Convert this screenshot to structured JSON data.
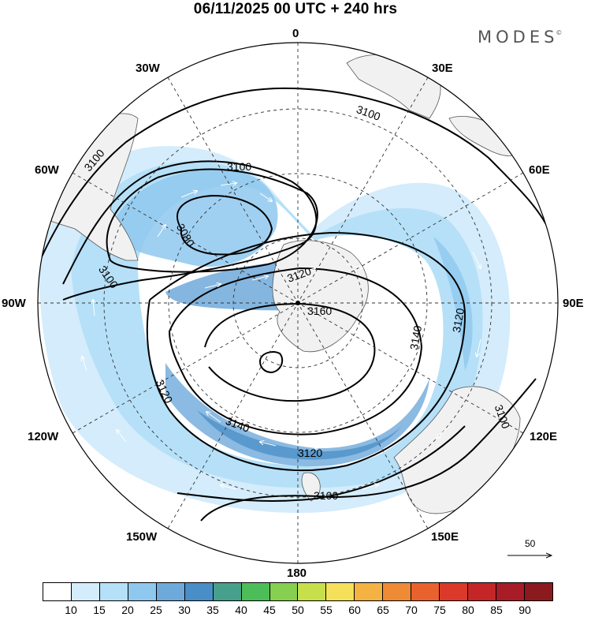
{
  "title": "06/11/2025  00 UTC  + 240 hrs",
  "brand": {
    "name": "MODES",
    "mark": "©"
  },
  "longitude_labels": {
    "n0": "0",
    "n30e": "30E",
    "n60e": "60E",
    "n90e": "90E",
    "n120e": "120E",
    "n150e": "150E",
    "n180": "180",
    "n150w": "150W",
    "n120w": "120W",
    "n90w": "90W",
    "n60w": "60W",
    "n30w": "30W"
  },
  "contour_labels": [
    "3100",
    "3100",
    "3100",
    "3100",
    "3100",
    "3100",
    "3080",
    "3120",
    "3120",
    "3120",
    "3120",
    "3140",
    "3140",
    "3160"
  ],
  "reference_vector": {
    "value": "50"
  },
  "colorbar": {
    "colors": [
      "#ffffff",
      "#d4ecfb",
      "#b5e0f8",
      "#8fc8ee",
      "#6ea9db",
      "#4a8ec7",
      "#47a08b",
      "#4dbd5a",
      "#86cf4f",
      "#c6df4b",
      "#f5e05a",
      "#f4b243",
      "#ef8a35",
      "#e9622d",
      "#db3a2a",
      "#c42628",
      "#a71c26",
      "#8b1a1f"
    ],
    "ticks": [
      "10",
      "15",
      "20",
      "25",
      "30",
      "35",
      "40",
      "45",
      "50",
      "55",
      "60",
      "65",
      "70",
      "75",
      "80",
      "85",
      "90"
    ]
  }
}
